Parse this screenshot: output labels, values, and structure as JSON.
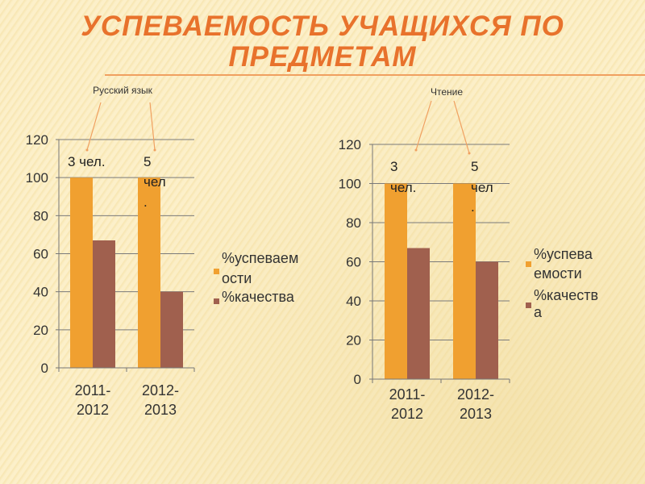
{
  "title": "УСПЕВАЕМОСТЬ УЧАЩИХСЯ ПО ПРЕДМЕТАМ",
  "colors": {
    "success": "#f0a030",
    "quality": "#a0604e",
    "title": "#e8722c",
    "arrow": "#f0a060"
  },
  "chart_data": [
    {
      "type": "bar",
      "title": "Русский язык",
      "categories": [
        "2011-2012",
        "2012-2013"
      ],
      "category_lines": [
        [
          "2011-",
          "2012"
        ],
        [
          "2012-",
          "2013"
        ]
      ],
      "series": [
        {
          "name": "%успеваемости",
          "legend_lines": [
            "%успеваем",
            "ости"
          ],
          "values": [
            100,
            100
          ]
        },
        {
          "name": "%качества",
          "legend_lines": [
            "%качества"
          ],
          "values": [
            67,
            40
          ]
        }
      ],
      "annotations": [
        [
          "3 чел."
        ],
        [
          "5",
          "чел",
          "."
        ]
      ],
      "ylim": [
        0,
        120
      ],
      "yticks": [
        0,
        20,
        40,
        60,
        80,
        100,
        120
      ],
      "grid": true,
      "legend": "right"
    },
    {
      "type": "bar",
      "title": "Чтение",
      "categories": [
        "2011-2012",
        "2012-2013"
      ],
      "category_lines": [
        [
          "2011-",
          "2012"
        ],
        [
          "2012-",
          "2013"
        ]
      ],
      "series": [
        {
          "name": "%успеваемости",
          "legend_lines": [
            "%успева",
            "емости"
          ],
          "values": [
            100,
            100
          ]
        },
        {
          "name": "%качества",
          "legend_lines": [
            "%качеств",
            "а"
          ],
          "values": [
            67,
            60
          ]
        }
      ],
      "annotations": [
        [
          "3",
          "чел."
        ],
        [
          "5",
          "чел",
          "."
        ]
      ],
      "ylim": [
        0,
        120
      ],
      "yticks": [
        0,
        20,
        40,
        60,
        80,
        100,
        120
      ],
      "grid": true,
      "legend": "right"
    }
  ]
}
